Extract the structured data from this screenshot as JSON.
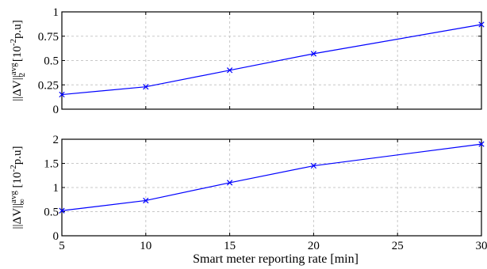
{
  "chart_data": [
    {
      "type": "line",
      "x": [
        5,
        10,
        15,
        20,
        30
      ],
      "series": [
        {
          "values": [
            0.15,
            0.23,
            0.4,
            0.57,
            0.87
          ]
        }
      ],
      "ylim": [
        0,
        1
      ],
      "xlim": [
        5,
        30
      ],
      "yticks": [
        "0",
        "0.25",
        "0.5",
        "0.75",
        "1"
      ],
      "ytick_values": [
        0,
        0.25,
        0.5,
        0.75,
        1
      ],
      "xticks": [],
      "grid": true,
      "ylabel": {
        "main": "||ΔV||",
        "sup": "avg",
        "sub": "2",
        "unit": "[10",
        "unit_exp": "-2",
        "unit_tail": "p.u]"
      },
      "line_color": "#0000ff",
      "marker": "x"
    },
    {
      "type": "line",
      "x": [
        5,
        10,
        15,
        20,
        30
      ],
      "series": [
        {
          "values": [
            0.52,
            0.73,
            1.1,
            1.45,
            1.9
          ]
        }
      ],
      "ylim": [
        0,
        2
      ],
      "xlim": [
        5,
        30
      ],
      "yticks": [
        "0",
        "0.5",
        "1",
        "1.5",
        "2"
      ],
      "ytick_values": [
        0,
        0.5,
        1,
        1.5,
        2
      ],
      "xticks": [
        "5",
        "10",
        "15",
        "20",
        "25",
        "30"
      ],
      "xtick_values": [
        5,
        10,
        15,
        20,
        25,
        30
      ],
      "xlabel": "Smart meter reporting rate [min]",
      "grid": true,
      "ylabel": {
        "main": "||ΔV||",
        "sup": "avg",
        "sub": "∞",
        "unit": "[10",
        "unit_exp": "-2",
        "unit_tail": "p.u]"
      },
      "line_color": "#0000ff",
      "marker": "x"
    }
  ]
}
